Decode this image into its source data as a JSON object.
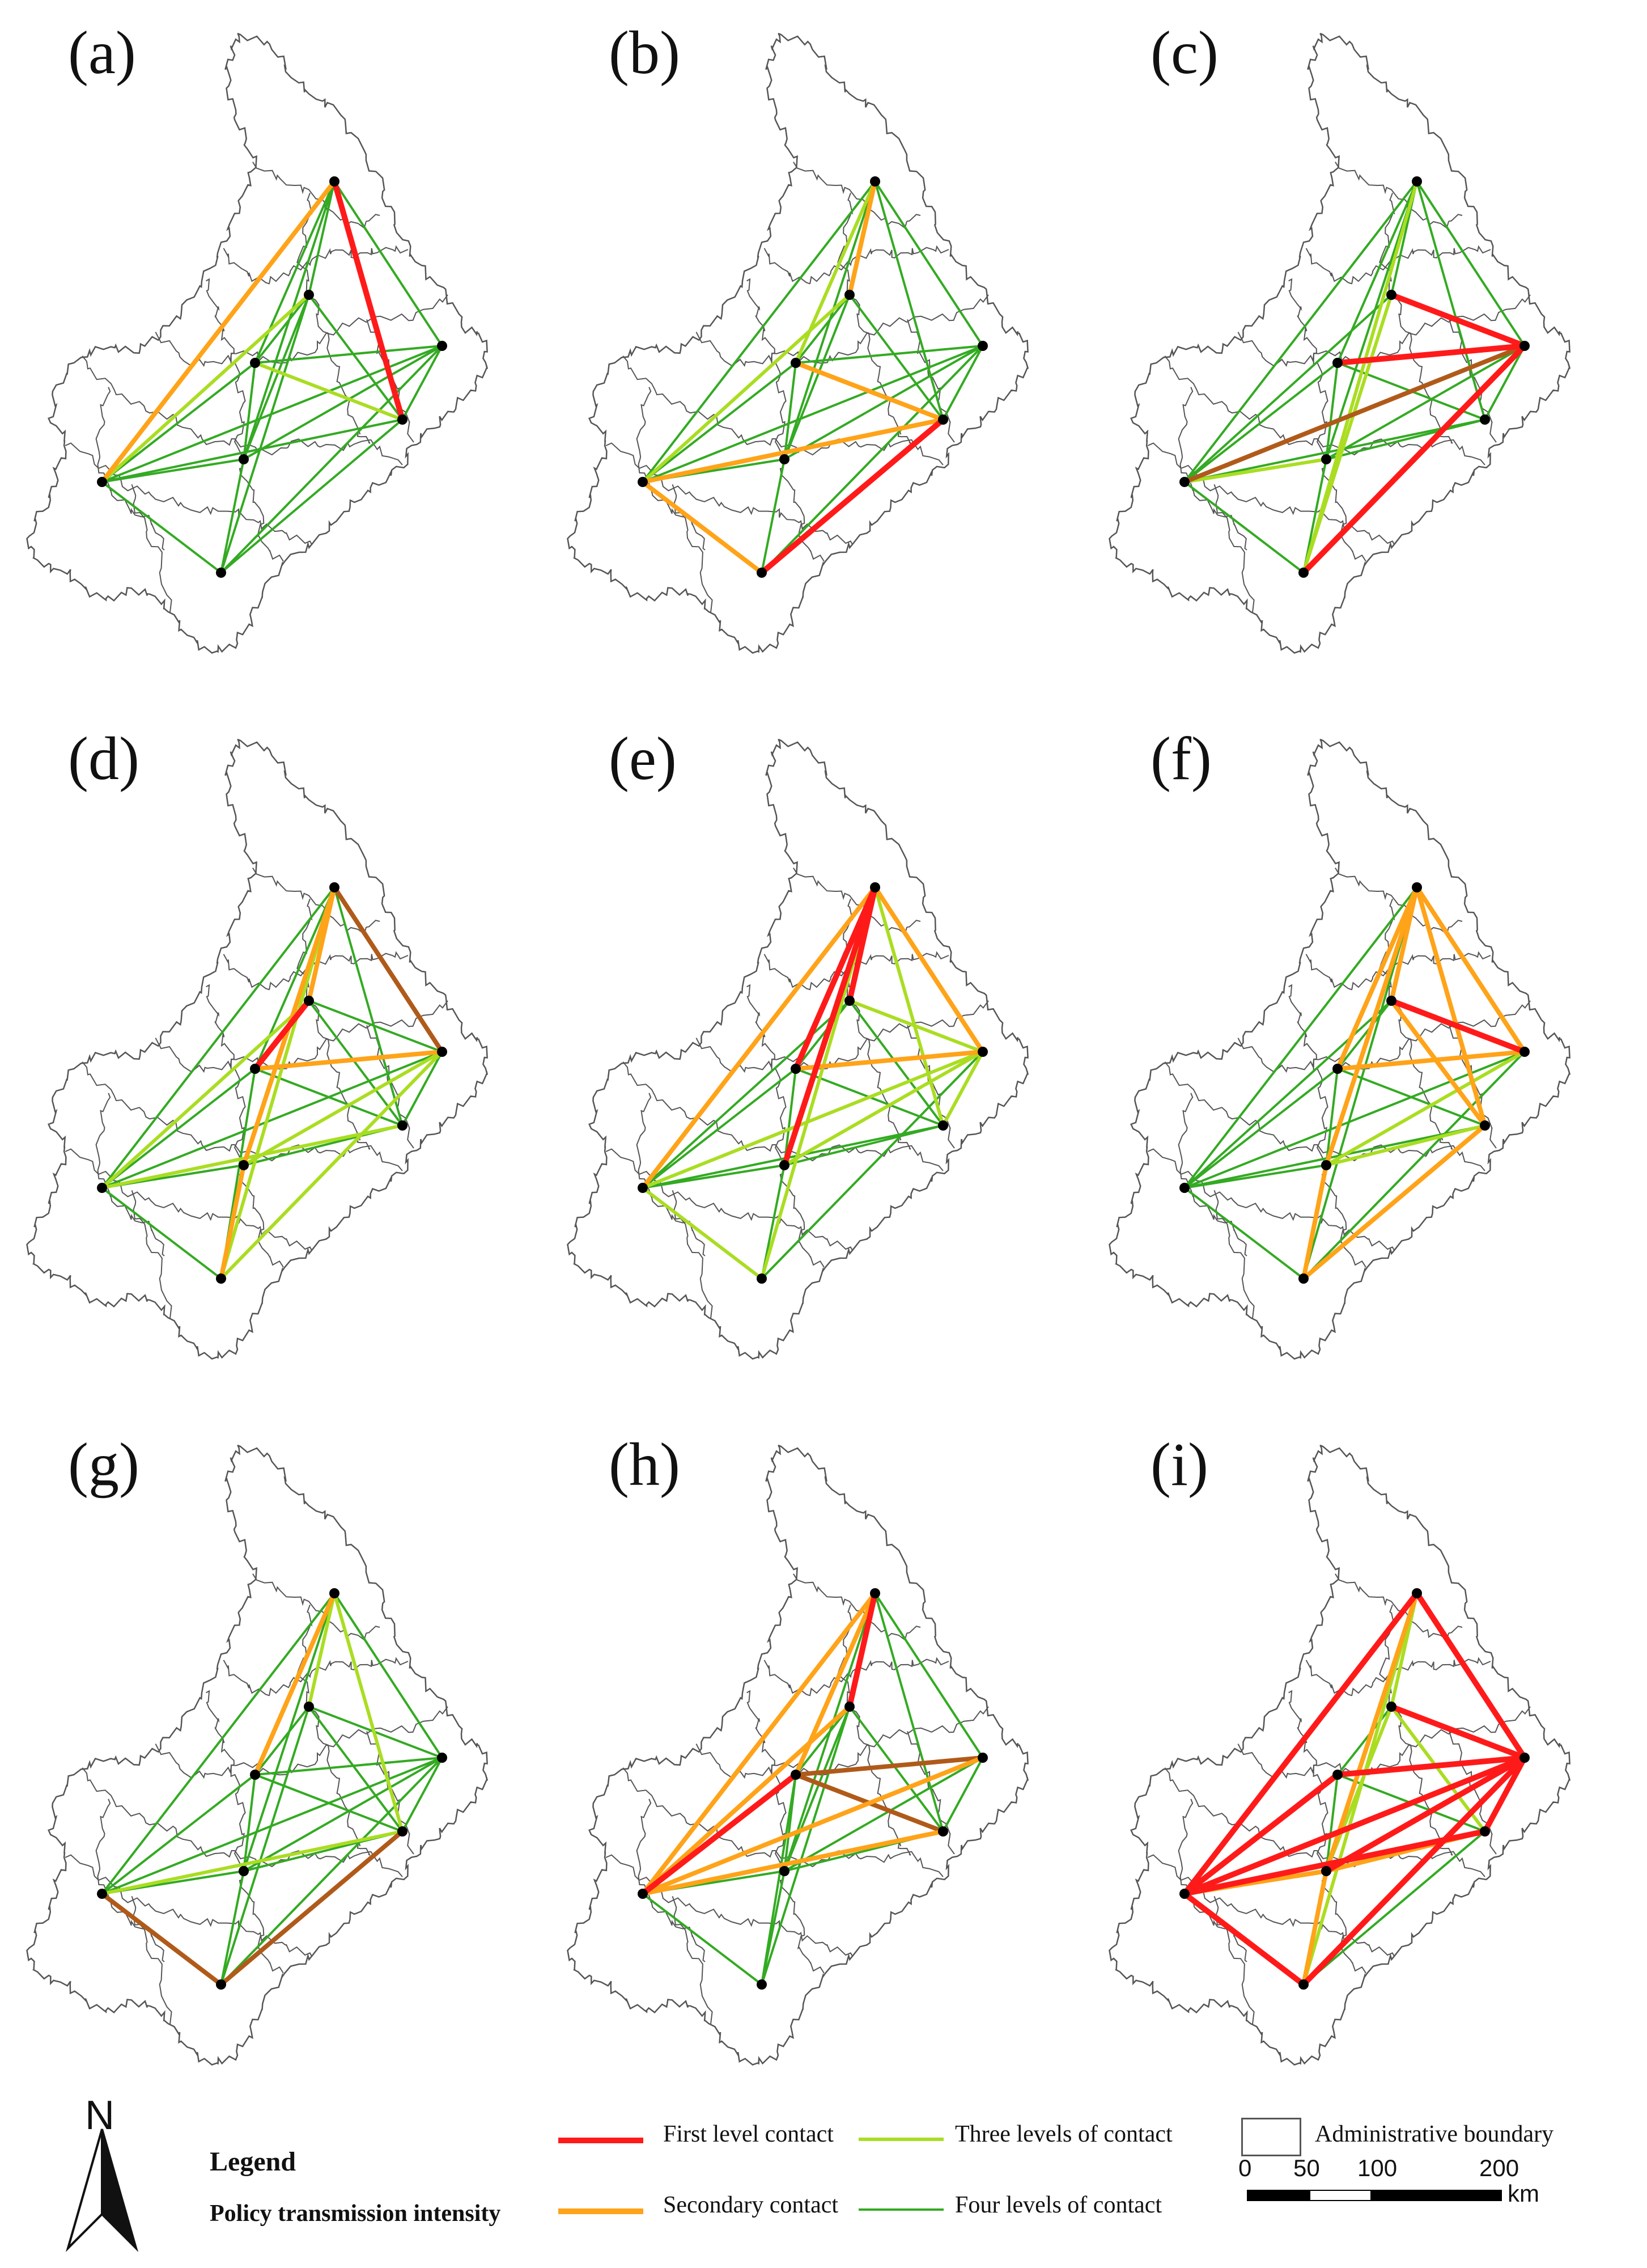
{
  "panels": [
    {
      "label": "(a)",
      "links": [
        [
          0,
          3,
          "first"
        ],
        [
          0,
          6,
          "second"
        ],
        [
          3,
          7,
          "four"
        ],
        [
          0,
          4,
          "four"
        ],
        [
          0,
          5,
          "four"
        ],
        [
          1,
          5,
          "four"
        ],
        [
          1,
          2,
          "four"
        ],
        [
          1,
          7,
          "four"
        ],
        [
          0,
          2,
          "four"
        ],
        [
          2,
          4,
          "four"
        ],
        [
          2,
          6,
          "four"
        ],
        [
          3,
          6,
          "four"
        ],
        [
          2,
          3,
          "three"
        ],
        [
          1,
          6,
          "three"
        ],
        [
          4,
          6,
          "four"
        ],
        [
          5,
          6,
          "four"
        ],
        [
          4,
          7,
          "four"
        ],
        [
          6,
          7,
          "four"
        ],
        [
          3,
          4,
          "four"
        ],
        [
          2,
          5,
          "four"
        ],
        [
          0,
          1,
          "four"
        ],
        [
          1,
          3,
          "four"
        ],
        [
          4,
          5,
          "four"
        ],
        [
          5,
          7,
          "four"
        ]
      ]
    },
    {
      "label": "(b)",
      "links": [
        [
          3,
          7,
          "first"
        ],
        [
          0,
          6,
          "four"
        ],
        [
          0,
          2,
          "three"
        ],
        [
          0,
          1,
          "second"
        ],
        [
          2,
          3,
          "second"
        ],
        [
          6,
          7,
          "second"
        ],
        [
          3,
          6,
          "second"
        ],
        [
          0,
          3,
          "four"
        ],
        [
          0,
          4,
          "four"
        ],
        [
          0,
          5,
          "four"
        ],
        [
          1,
          5,
          "four"
        ],
        [
          1,
          2,
          "four"
        ],
        [
          2,
          4,
          "four"
        ],
        [
          2,
          6,
          "four"
        ],
        [
          4,
          6,
          "four"
        ],
        [
          4,
          7,
          "four"
        ],
        [
          5,
          6,
          "four"
        ],
        [
          3,
          4,
          "four"
        ],
        [
          2,
          5,
          "four"
        ],
        [
          1,
          6,
          "three"
        ],
        [
          4,
          5,
          "four"
        ],
        [
          5,
          7,
          "four"
        ],
        [
          1,
          3,
          "four"
        ]
      ]
    },
    {
      "label": "(c)",
      "links": [
        [
          1,
          4,
          "first"
        ],
        [
          2,
          4,
          "first"
        ],
        [
          4,
          7,
          "first"
        ],
        [
          4,
          6,
          "brown"
        ],
        [
          0,
          4,
          "four"
        ],
        [
          0,
          6,
          "four"
        ],
        [
          0,
          1,
          "four"
        ],
        [
          0,
          2,
          "four"
        ],
        [
          0,
          5,
          "four"
        ],
        [
          0,
          3,
          "four"
        ],
        [
          1,
          7,
          "three"
        ],
        [
          2,
          5,
          "four"
        ],
        [
          3,
          6,
          "four"
        ],
        [
          3,
          5,
          "four"
        ],
        [
          6,
          7,
          "four"
        ],
        [
          5,
          7,
          "four"
        ],
        [
          2,
          6,
          "four"
        ],
        [
          1,
          6,
          "four"
        ],
        [
          4,
          5,
          "four"
        ],
        [
          2,
          3,
          "four"
        ],
        [
          3,
          4,
          "four"
        ],
        [
          0,
          7,
          "three"
        ],
        [
          5,
          6,
          "three"
        ]
      ]
    },
    {
      "label": "(d)",
      "links": [
        [
          1,
          2,
          "first"
        ],
        [
          0,
          1,
          "second"
        ],
        [
          0,
          5,
          "second"
        ],
        [
          2,
          4,
          "second"
        ],
        [
          5,
          7,
          "second"
        ],
        [
          0,
          4,
          "brown"
        ],
        [
          0,
          2,
          "four"
        ],
        [
          0,
          6,
          "four"
        ],
        [
          0,
          3,
          "four"
        ],
        [
          0,
          7,
          "three"
        ],
        [
          1,
          3,
          "four"
        ],
        [
          1,
          4,
          "four"
        ],
        [
          2,
          3,
          "four"
        ],
        [
          2,
          6,
          "four"
        ],
        [
          3,
          6,
          "three"
        ],
        [
          4,
          6,
          "four"
        ],
        [
          4,
          7,
          "three"
        ],
        [
          5,
          6,
          "four"
        ],
        [
          3,
          5,
          "four"
        ],
        [
          6,
          7,
          "four"
        ],
        [
          3,
          4,
          "four"
        ],
        [
          4,
          5,
          "three"
        ],
        [
          2,
          7,
          "four"
        ],
        [
          1,
          6,
          "three"
        ]
      ]
    },
    {
      "label": "(e)",
      "links": [
        [
          0,
          5,
          "first"
        ],
        [
          0,
          1,
          "first"
        ],
        [
          0,
          2,
          "first"
        ],
        [
          0,
          6,
          "second"
        ],
        [
          0,
          4,
          "second"
        ],
        [
          2,
          4,
          "second"
        ],
        [
          1,
          4,
          "three"
        ],
        [
          0,
          3,
          "three"
        ],
        [
          0,
          7,
          "three"
        ],
        [
          6,
          7,
          "three"
        ],
        [
          4,
          6,
          "three"
        ],
        [
          3,
          6,
          "four"
        ],
        [
          3,
          5,
          "four"
        ],
        [
          2,
          3,
          "four"
        ],
        [
          4,
          5,
          "three"
        ],
        [
          1,
          2,
          "four"
        ],
        [
          2,
          6,
          "four"
        ],
        [
          5,
          6,
          "four"
        ],
        [
          5,
          7,
          "four"
        ],
        [
          4,
          7,
          "four"
        ],
        [
          1,
          3,
          "four"
        ],
        [
          2,
          5,
          "four"
        ],
        [
          3,
          4,
          "three"
        ],
        [
          1,
          6,
          "four"
        ]
      ]
    },
    {
      "label": "(f)",
      "links": [
        [
          1,
          4,
          "first"
        ],
        [
          0,
          1,
          "second"
        ],
        [
          0,
          5,
          "second"
        ],
        [
          0,
          2,
          "second"
        ],
        [
          0,
          3,
          "second"
        ],
        [
          0,
          4,
          "second"
        ],
        [
          2,
          4,
          "second"
        ],
        [
          3,
          7,
          "second"
        ],
        [
          5,
          7,
          "second"
        ],
        [
          1,
          3,
          "second"
        ],
        [
          0,
          6,
          "four"
        ],
        [
          0,
          7,
          "four"
        ],
        [
          2,
          3,
          "four"
        ],
        [
          2,
          6,
          "four"
        ],
        [
          4,
          6,
          "four"
        ],
        [
          3,
          6,
          "four"
        ],
        [
          5,
          6,
          "four"
        ],
        [
          4,
          5,
          "three"
        ],
        [
          3,
          5,
          "three"
        ],
        [
          6,
          7,
          "four"
        ],
        [
          1,
          2,
          "four"
        ],
        [
          2,
          5,
          "four"
        ],
        [
          4,
          7,
          "four"
        ],
        [
          1,
          6,
          "four"
        ]
      ]
    },
    {
      "label": "(g)",
      "links": [
        [
          6,
          7,
          "brown"
        ],
        [
          3,
          7,
          "brown"
        ],
        [
          0,
          6,
          "four"
        ],
        [
          0,
          2,
          "second"
        ],
        [
          0,
          1,
          "three"
        ],
        [
          0,
          4,
          "four"
        ],
        [
          0,
          3,
          "three"
        ],
        [
          0,
          5,
          "four"
        ],
        [
          1,
          2,
          "four"
        ],
        [
          1,
          4,
          "four"
        ],
        [
          1,
          7,
          "four"
        ],
        [
          2,
          4,
          "four"
        ],
        [
          2,
          6,
          "four"
        ],
        [
          3,
          6,
          "three"
        ],
        [
          4,
          6,
          "four"
        ],
        [
          5,
          6,
          "four"
        ],
        [
          5,
          7,
          "four"
        ],
        [
          4,
          7,
          "four"
        ],
        [
          2,
          3,
          "four"
        ],
        [
          3,
          5,
          "four"
        ],
        [
          3,
          4,
          "four"
        ],
        [
          2,
          5,
          "four"
        ],
        [
          1,
          3,
          "four"
        ],
        [
          4,
          5,
          "four"
        ]
      ]
    },
    {
      "label": "(h)",
      "links": [
        [
          0,
          1,
          "first"
        ],
        [
          2,
          6,
          "first"
        ],
        [
          1,
          6,
          "second"
        ],
        [
          0,
          6,
          "second"
        ],
        [
          2,
          4,
          "brown"
        ],
        [
          2,
          3,
          "brown"
        ],
        [
          0,
          2,
          "second"
        ],
        [
          3,
          6,
          "second"
        ],
        [
          0,
          4,
          "four"
        ],
        [
          0,
          3,
          "four"
        ],
        [
          0,
          5,
          "four"
        ],
        [
          1,
          5,
          "four"
        ],
        [
          1,
          2,
          "four"
        ],
        [
          4,
          6,
          "second"
        ],
        [
          5,
          6,
          "four"
        ],
        [
          5,
          7,
          "four"
        ],
        [
          3,
          5,
          "four"
        ],
        [
          3,
          4,
          "four"
        ],
        [
          2,
          5,
          "four"
        ],
        [
          6,
          7,
          "four"
        ],
        [
          4,
          5,
          "four"
        ],
        [
          1,
          3,
          "four"
        ],
        [
          2,
          7,
          "four"
        ],
        [
          1,
          7,
          "four"
        ]
      ]
    },
    {
      "label": "(i)",
      "links": [
        [
          0,
          6,
          "first"
        ],
        [
          0,
          4,
          "first"
        ],
        [
          4,
          6,
          "first"
        ],
        [
          6,
          7,
          "first"
        ],
        [
          2,
          4,
          "first"
        ],
        [
          2,
          6,
          "first"
        ],
        [
          3,
          6,
          "first"
        ],
        [
          4,
          7,
          "first"
        ],
        [
          1,
          4,
          "first"
        ],
        [
          5,
          4,
          "first"
        ],
        [
          3,
          4,
          "first"
        ],
        [
          0,
          5,
          "second"
        ],
        [
          0,
          1,
          "three"
        ],
        [
          0,
          7,
          "three"
        ],
        [
          5,
          6,
          "second"
        ],
        [
          3,
          5,
          "second"
        ],
        [
          5,
          7,
          "second"
        ],
        [
          1,
          5,
          "three"
        ],
        [
          1,
          3,
          "three"
        ],
        [
          2,
          5,
          "four"
        ],
        [
          2,
          3,
          "four"
        ],
        [
          1,
          2,
          "four"
        ],
        [
          3,
          7,
          "four"
        ],
        [
          6,
          2,
          "first"
        ]
      ]
    }
  ],
  "legend": {
    "title": "Legend",
    "subtitle": "Policy transmission intensity",
    "north_label": "N",
    "items": [
      {
        "key": "first",
        "label": "First level contact",
        "color": "#ff1a1a"
      },
      {
        "key": "second",
        "label": "Secondary contact",
        "color": "#ffa319"
      },
      {
        "key": "three",
        "label": "Three levels of contact",
        "color": "#aadd22"
      },
      {
        "key": "four",
        "label": "Four levels of contact",
        "color": "#33aa22"
      }
    ],
    "boundary_label": "Administrative boundary",
    "scale_ticks": [
      "0",
      "50",
      "100",
      "200"
    ],
    "scale_unit": "km"
  },
  "colors": {
    "first": "#ff1a1a",
    "second": "#ffa319",
    "three": "#aadd22",
    "four": "#33aa22",
    "brown": "#b05a1a",
    "boundary": "#555555",
    "node": "#000000"
  }
}
